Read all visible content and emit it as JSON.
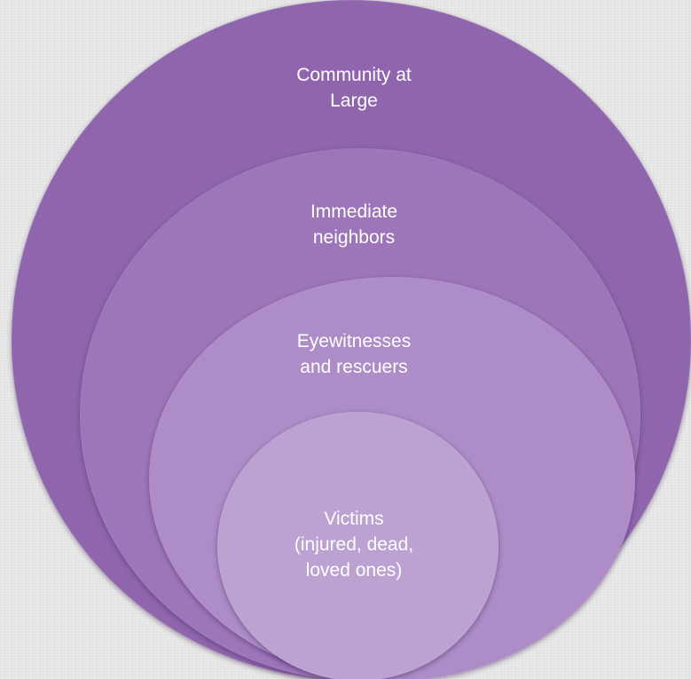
{
  "diagram": {
    "rings": [
      {
        "label": "Community at\nLarge",
        "color": "#8f66ae"
      },
      {
        "label": "Immediate\nneighbors",
        "color": "#9c76b9"
      },
      {
        "label": "Eyewitnesses\nand rescuers",
        "color": "#ad8cc7"
      },
      {
        "label": "Victims\n(injured, dead,\nloved ones)",
        "color": "#bca2d3"
      }
    ]
  }
}
